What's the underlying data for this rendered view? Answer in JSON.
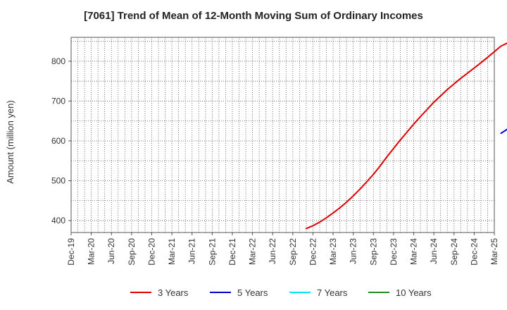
{
  "chart_data": {
    "type": "line",
    "title": "[7061]  Trend of Mean of 12-Month Moving Sum of Ordinary Incomes",
    "xlabel": "",
    "ylabel": "Amount (million yen)",
    "ylim": [
      370,
      860
    ],
    "yticks": [
      400,
      500,
      600,
      700,
      800
    ],
    "categories": [
      "Dec-19",
      "Mar-20",
      "Jun-20",
      "Sep-20",
      "Dec-20",
      "Mar-21",
      "Jun-21",
      "Sep-21",
      "Dec-21",
      "Mar-22",
      "Jun-22",
      "Sep-22",
      "Dec-22",
      "Mar-23",
      "Jun-23",
      "Sep-23",
      "Dec-23",
      "Mar-24",
      "Jun-24",
      "Sep-24",
      "Dec-24",
      "Mar-25"
    ],
    "grid": true,
    "legend_position": "bottom",
    "series": [
      {
        "name": "3 Years",
        "color": "#dd0000",
        "points": [
          [
            "Nov-22",
            380
          ],
          [
            "Dec-22",
            387
          ],
          [
            "Jan-23",
            396
          ],
          [
            "Feb-23",
            407
          ],
          [
            "Mar-23",
            419
          ],
          [
            "Apr-23",
            432
          ],
          [
            "May-23",
            446
          ],
          [
            "Jun-23",
            462
          ],
          [
            "Jul-23",
            479
          ],
          [
            "Aug-23",
            497
          ],
          [
            "Sep-23",
            516
          ],
          [
            "Oct-23",
            537
          ],
          [
            "Nov-23",
            560
          ],
          [
            "Dec-23",
            581
          ],
          [
            "Jan-24",
            602
          ],
          [
            "Feb-24",
            622
          ],
          [
            "Mar-24",
            642
          ],
          [
            "Apr-24",
            661
          ],
          [
            "May-24",
            679
          ],
          [
            "Jun-24",
            697
          ],
          [
            "Jul-24",
            713
          ],
          [
            "Aug-24",
            729
          ],
          [
            "Sep-24",
            743
          ],
          [
            "Oct-24",
            757
          ],
          [
            "Nov-24",
            770
          ],
          [
            "Dec-24",
            783
          ],
          [
            "Jan-25",
            796
          ],
          [
            "Feb-25",
            810
          ],
          [
            "Mar-25",
            824
          ],
          [
            "Apr-25",
            838
          ],
          [
            "May-25",
            846
          ]
        ]
      },
      {
        "name": "5 Years",
        "color": "#0000cc",
        "points": [
          [
            "Apr-25",
            619
          ],
          [
            "May-25",
            630
          ]
        ]
      },
      {
        "name": "7 Years",
        "color": "#00e5ee",
        "points": []
      },
      {
        "name": "10 Years",
        "color": "#228b22",
        "points": []
      }
    ]
  }
}
